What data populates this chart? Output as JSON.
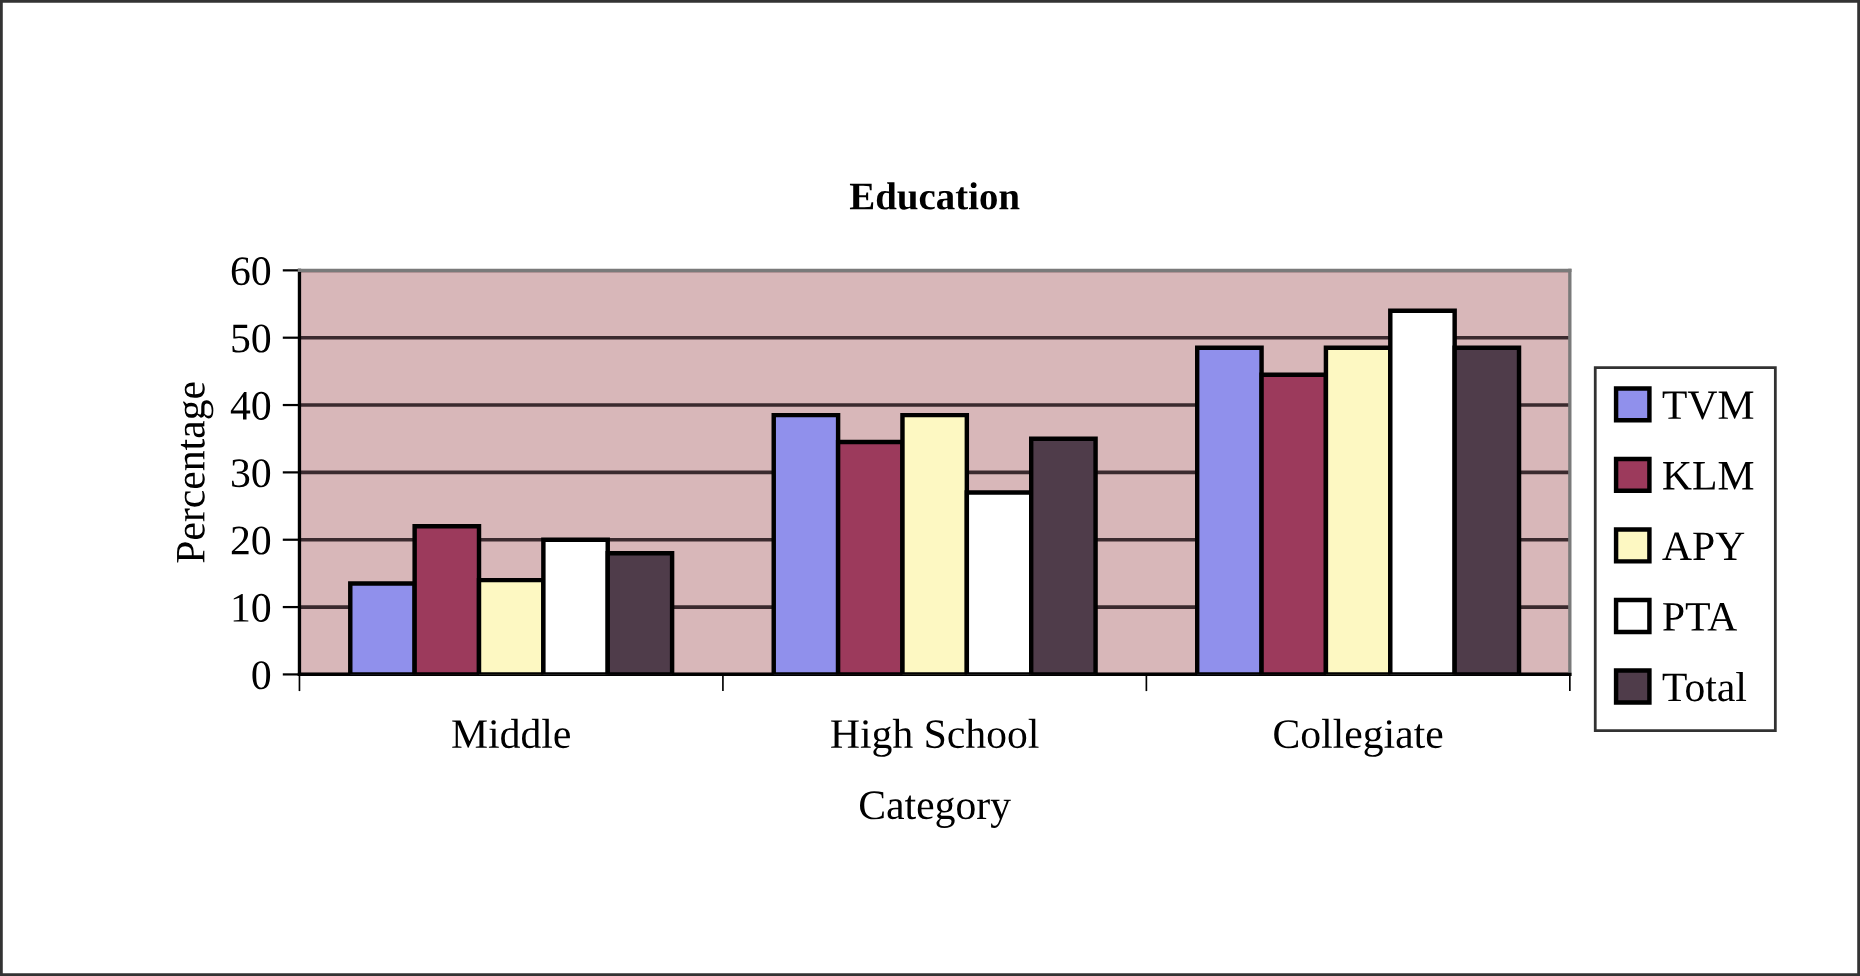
{
  "chart_data": {
    "type": "bar",
    "title": "Education",
    "xlabel": "Category",
    "ylabel": "Percentage",
    "categories": [
      "Middle",
      "High School",
      "Collegiate"
    ],
    "series": [
      {
        "name": "TVM",
        "color": "#9090ec",
        "values": [
          13.5,
          38.5,
          48.5
        ]
      },
      {
        "name": "KLM",
        "color": "#9c3a5c",
        "values": [
          22,
          34.5,
          44.5
        ]
      },
      {
        "name": "APY",
        "color": "#fdf8c2",
        "values": [
          14,
          38.5,
          48.5
        ]
      },
      {
        "name": "PTA",
        "color": "#ffffff",
        "values": [
          20,
          27,
          54
        ]
      },
      {
        "name": "Total",
        "color": "#4f3c4a",
        "values": [
          18,
          35,
          48.5
        ]
      }
    ],
    "ylim": [
      0,
      60
    ],
    "yticks": [
      0,
      10,
      20,
      30,
      40,
      50,
      60
    ],
    "grid": "y",
    "legend": "right"
  }
}
